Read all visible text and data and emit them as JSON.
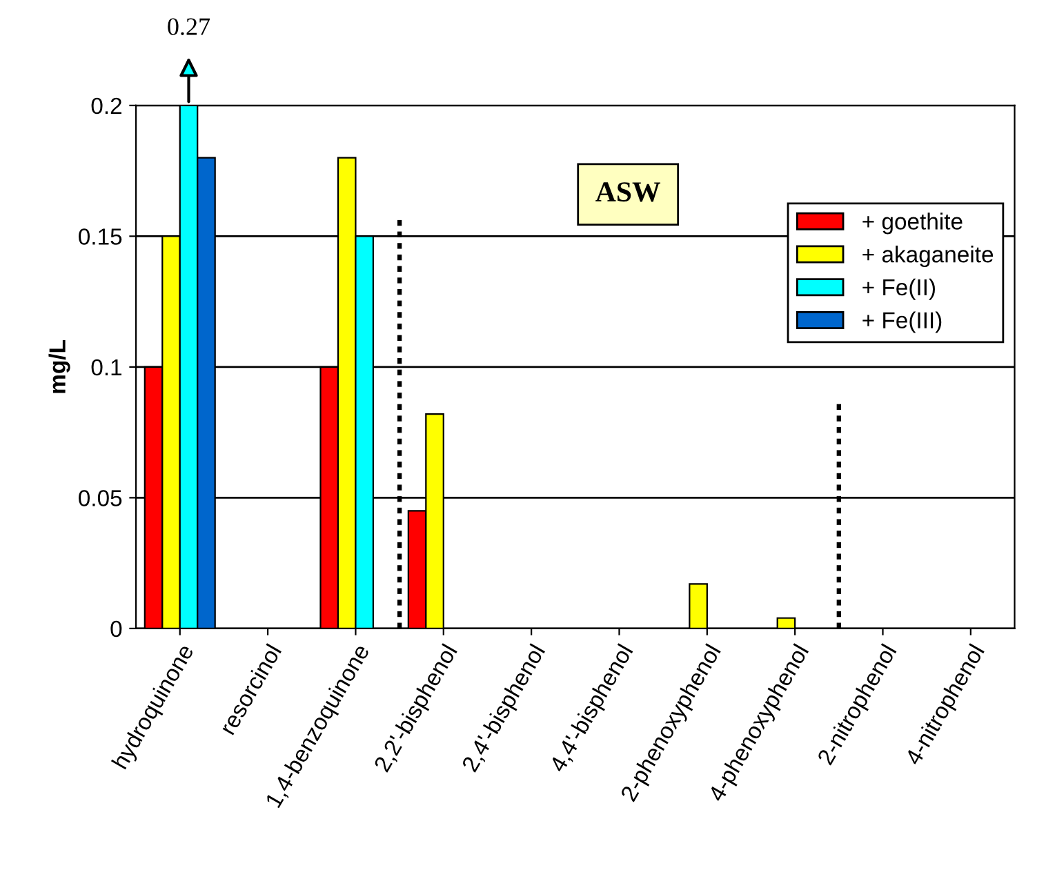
{
  "chart_data": {
    "type": "bar",
    "ylabel": "mg/L",
    "categories": [
      "hydroquinone",
      "resorcinol",
      "1,4-benzoquinone",
      "2,2'-bisphenol",
      "2,4'-bisphenol",
      "4,4'-bisphenol",
      "2-phenoxyphenol",
      "4-phenoxyphenol",
      "2-nitrophenol",
      "4-nitrophenol"
    ],
    "series": [
      {
        "name": "+ goethite",
        "color": "#ff0000",
        "values": [
          0.1,
          null,
          0.1,
          0.045,
          null,
          null,
          null,
          null,
          null,
          null
        ]
      },
      {
        "name": "+ akaganeite",
        "color": "#ffff00",
        "values": [
          0.15,
          null,
          0.18,
          0.082,
          null,
          null,
          0.017,
          0.004,
          null,
          null
        ]
      },
      {
        "name": "+ Fe(II)",
        "color": "#00ffff",
        "values": [
          0.2,
          null,
          0.15,
          null,
          null,
          null,
          null,
          null,
          null,
          null
        ]
      },
      {
        "name": "+ Fe(III)",
        "color": "#0066cc",
        "values": [
          0.18,
          null,
          null,
          null,
          null,
          null,
          null,
          null,
          null,
          null
        ]
      }
    ],
    "ylim": [
      0,
      0.2
    ],
    "yticks": [
      0,
      0.05,
      0.1,
      0.15,
      0.2
    ],
    "grid": "y",
    "legend": "right",
    "annotations": [
      "0.27",
      "ASW"
    ]
  }
}
